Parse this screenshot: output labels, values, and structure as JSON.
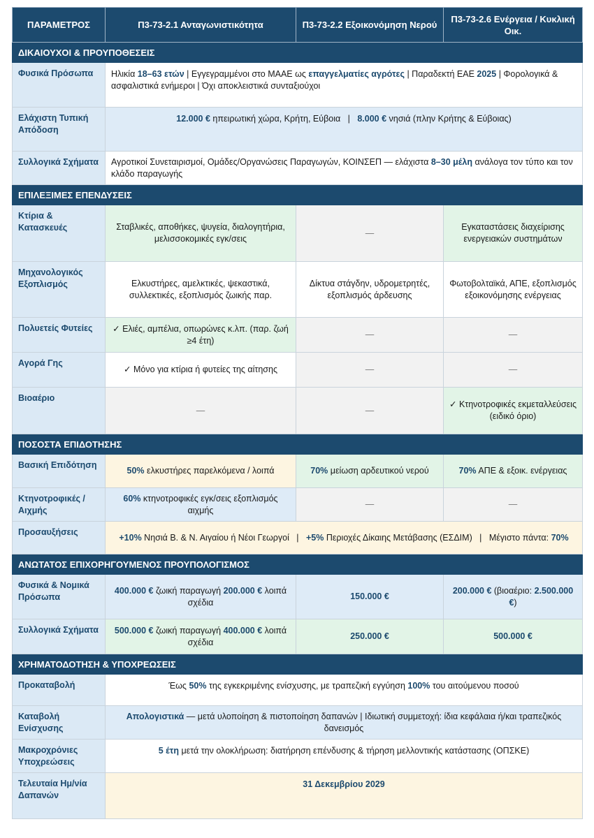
{
  "colors": {
    "header": "#1c4a6e",
    "label": "#dbe9f5",
    "white": "#ffffff",
    "green": "#e2f4e7",
    "grey": "#f2f2f2",
    "blue": "#deebf7",
    "cream": "#fdf5e1",
    "highlight": "#1c4a6e"
  },
  "header": [
    "ΠΑΡΑΜΕΤΡΟΣ",
    "Π3-73-2.1 Ανταγωνιστικότητα",
    "Π3-73-2.2 Εξοικονόμηση Νερού",
    "Π3-73-2.6 Ενέργεια / Κυκλική Οικ."
  ],
  "sections": [
    {
      "title": "ΔΙΚΑΙΟΥΧΟΙ & ΠΡΟΥΠΟΘΕΣΕΙΣ",
      "rows": [
        {
          "label": "Φυσικά Πρόσωπα",
          "cells": [
            {
              "span": 3,
              "bg": "white",
              "align": "l",
              "top": true,
              "segs": [
                {
                  "t": "Ηλικία "
                },
                {
                  "t": "18–63 ετών",
                  "hl": true
                },
                {
                  "t": " | Εγγεγραμμένοι στο ΜΑΑΕ ως "
                },
                {
                  "t": "επαγγελματίες αγρότες",
                  "hl": true
                },
                {
                  "t": " | Παραδεκτή ΕΑΕ "
                },
                {
                  "t": "2025",
                  "hl": true
                },
                {
                  "t": " | Φορολογικά & ασφαλιστικά ενήμεροι | Όχι αποκλειστικά συνταξιούχοι"
                }
              ]
            }
          ]
        },
        {
          "label": "Ελάχιστη Τυπική Απόδοση",
          "cells": [
            {
              "span": 3,
              "bg": "blue",
              "align": "c",
              "top": true,
              "segs": [
                {
                  "t": "12.000 €",
                  "hl": true
                },
                {
                  "t": " ηπειρωτική χώρα, Κρήτη, Εύβοια   |   "
                },
                {
                  "t": "8.000 €",
                  "hl": true
                },
                {
                  "t": " νησιά (πλην Κρήτης & Εύβοιας)"
                }
              ]
            }
          ]
        },
        {
          "label": "Συλλογικά Σχήματα",
          "cells": [
            {
              "span": 3,
              "bg": "white",
              "align": "l",
              "segs": [
                {
                  "t": "Αγροτικοί Συνεταιρισμοί, Ομάδες/Οργανώσεις Παραγωγών, ΚΟΙΝΣΕΠ — ελάχιστα "
                },
                {
                  "t": "8–30 μέλη",
                  "hl": true
                },
                {
                  "t": " ανάλογα τον τύπο και τον κλάδο παραγωγής"
                }
              ]
            }
          ]
        }
      ]
    },
    {
      "title": "ΕΠΙΛΕΞΙΜΕΣ ΕΠΕΝΔΥΣΕΙΣ",
      "rows": [
        {
          "label": "Κτίρια & Κατασκευές",
          "cells": [
            {
              "bg": "green",
              "align": "c",
              "segs": [
                {
                  "t": "Σταβλικές, αποθήκες, ψυγεία, διαλογητήρια, μελισσοκομικές εγκ/σεις"
                }
              ]
            },
            {
              "bg": "grey",
              "align": "c",
              "segs": [
                {
                  "t": "—"
                }
              ]
            },
            {
              "bg": "green",
              "align": "c",
              "segs": [
                {
                  "t": "Εγκαταστάσεις διαχείρισης ενεργειακών συστημάτων"
                }
              ]
            }
          ]
        },
        {
          "label": "Μηχανολογικός Εξοπλισμός",
          "cells": [
            {
              "bg": "white",
              "align": "c",
              "segs": [
                {
                  "t": "Ελκυστήρες, αμελκτικές, ψεκαστικά, συλλεκτικές, εξοπλισμός ζωικής παρ."
                }
              ]
            },
            {
              "bg": "white",
              "align": "c",
              "segs": [
                {
                  "t": "Δίκτυα στάγδην, υδρομετρητές, εξοπλισμός άρδευσης"
                }
              ]
            },
            {
              "bg": "white",
              "align": "c",
              "segs": [
                {
                  "t": "Φωτοβολταϊκά, ΑΠΕ, εξοπλισμός εξοικονόμησης ενέργειας"
                }
              ]
            }
          ]
        },
        {
          "label": "Πολυετείς Φυτείες",
          "cells": [
            {
              "bg": "green",
              "align": "c",
              "segs": [
                {
                  "t": "✓ Ελιές, αμπέλια, οπωρώνες κ.λπ. (παρ. ζωή ≥4 έτη)"
                }
              ]
            },
            {
              "bg": "grey",
              "align": "c",
              "segs": [
                {
                  "t": "—"
                }
              ]
            },
            {
              "bg": "grey",
              "align": "c",
              "segs": [
                {
                  "t": "—"
                }
              ]
            }
          ]
        },
        {
          "label": "Αγορά Γης",
          "cells": [
            {
              "bg": "white",
              "align": "c",
              "segs": [
                {
                  "t": "✓ Μόνο για κτίρια ή φυτείες της αίτησης"
                }
              ]
            },
            {
              "bg": "grey",
              "align": "c",
              "segs": [
                {
                  "t": "—"
                }
              ]
            },
            {
              "bg": "grey",
              "align": "c",
              "segs": [
                {
                  "t": "—"
                }
              ]
            }
          ]
        },
        {
          "label": "Βιοαέριο",
          "cells": [
            {
              "bg": "grey",
              "align": "c",
              "segs": [
                {
                  "t": "—"
                }
              ]
            },
            {
              "bg": "grey",
              "align": "c",
              "segs": [
                {
                  "t": "—"
                }
              ]
            },
            {
              "bg": "green",
              "align": "c",
              "segs": [
                {
                  "t": "✓ Κτηνοτροφικές εκμεταλλεύσεις (ειδικό όριο)"
                }
              ]
            }
          ]
        }
      ]
    },
    {
      "title": "ΠΟΣΟΣΤΑ ΕΠΙΔΟΤΗΣΗΣ",
      "rows": [
        {
          "label": "Βασική Επιδότηση",
          "cells": [
            {
              "bg": "cream",
              "align": "c",
              "segs": [
                {
                  "t": "50%",
                  "hl": true
                },
                {
                  "t": " ελκυστήρες παρελκόμενα / λοιπά"
                }
              ]
            },
            {
              "bg": "green",
              "align": "c",
              "segs": [
                {
                  "t": "70%",
                  "hl": true
                },
                {
                  "t": " μείωση αρδευτικού νερού"
                }
              ]
            },
            {
              "bg": "green",
              "align": "c",
              "segs": [
                {
                  "t": "70%",
                  "hl": true
                },
                {
                  "t": " ΑΠΕ & εξοικ. ενέργειας"
                }
              ]
            }
          ]
        },
        {
          "label": "Κτηνοτροφικές / Αιχμής",
          "cells": [
            {
              "bg": "blue",
              "align": "c",
              "segs": [
                {
                  "t": "60%",
                  "hl": true
                },
                {
                  "t": " κτηνοτροφικές εγκ/σεις εξοπλισμός αιχμής"
                }
              ]
            },
            {
              "bg": "grey",
              "align": "c",
              "segs": [
                {
                  "t": "—"
                }
              ]
            },
            {
              "bg": "grey",
              "align": "c",
              "segs": [
                {
                  "t": "—"
                }
              ]
            }
          ]
        },
        {
          "label": "Προσαυξήσεις",
          "cells": [
            {
              "span": 3,
              "bg": "cream",
              "align": "c",
              "segs": [
                {
                  "t": "+10%",
                  "hl": true
                },
                {
                  "t": " Νησιά Β. & Ν. Αιγαίου ή Νέοι Γεωργοί   |   "
                },
                {
                  "t": "+5%",
                  "hl": true
                },
                {
                  "t": " Περιοχές Δίκαιης Μετάβασης (ΕΣΔΙΜ)   |   Μέγιστο πάντα: "
                },
                {
                  "t": "70%",
                  "hl": true
                }
              ]
            }
          ]
        }
      ]
    },
    {
      "title": "ΑΝΩΤΑΤΟΣ ΕΠΙΧΟΡΗΓΟΥΜΕΝΟΣ ΠΡΟΥΠΟΛΟΓΙΣΜΟΣ",
      "rows": [
        {
          "label": "Φυσικά & Νομικά Πρόσωπα",
          "cells": [
            {
              "bg": "blue",
              "align": "c",
              "segs": [
                {
                  "t": "400.000 €",
                  "hl": true
                },
                {
                  "t": " ζωική παραγωγή "
                },
                {
                  "t": "200.000 €",
                  "hl": true
                },
                {
                  "t": " λοιπά σχέδια"
                }
              ]
            },
            {
              "bg": "blue",
              "align": "c",
              "segs": [
                {
                  "t": "150.000 €",
                  "hl": true
                }
              ]
            },
            {
              "bg": "blue",
              "align": "c",
              "segs": [
                {
                  "t": "200.000 €",
                  "hl": true
                },
                {
                  "t": " (βιοαέριο: "
                },
                {
                  "t": "2.500.000 €",
                  "hl": true
                },
                {
                  "t": ")"
                }
              ]
            }
          ]
        },
        {
          "label": "Συλλογικά Σχήματα",
          "cells": [
            {
              "bg": "green",
              "align": "c",
              "segs": [
                {
                  "t": "500.000 €",
                  "hl": true
                },
                {
                  "t": " ζωική παραγωγή "
                },
                {
                  "t": "400.000 €",
                  "hl": true
                },
                {
                  "t": " λοιπά σχέδια"
                }
              ]
            },
            {
              "bg": "green",
              "align": "c",
              "segs": [
                {
                  "t": "250.000 €",
                  "hl": true
                }
              ]
            },
            {
              "bg": "green",
              "align": "c",
              "segs": [
                {
                  "t": "500.000 €",
                  "hl": true
                }
              ]
            }
          ]
        }
      ]
    },
    {
      "title": "ΧΡΗΜΑΤΟΔΟΤΗΣΗ & ΥΠΟΧΡΕΩΣΕΙΣ",
      "rows": [
        {
          "label": "Προκαταβολή",
          "cells": [
            {
              "span": 3,
              "bg": "white",
              "align": "c",
              "top": true,
              "segs": [
                {
                  "t": "Έως "
                },
                {
                  "t": "50%",
                  "hl": true
                },
                {
                  "t": " της εγκεκριμένης ενίσχυσης, με τραπεζική εγγύηση "
                },
                {
                  "t": "100%",
                  "hl": true
                },
                {
                  "t": " του αιτούμενου ποσού"
                }
              ]
            }
          ]
        },
        {
          "label": "Καταβολή Ενίσχυσης",
          "cells": [
            {
              "span": 3,
              "bg": "blue",
              "align": "c",
              "segs": [
                {
                  "t": "Απολογιστικά",
                  "hl": true
                },
                {
                  "t": " — μετά υλοποίηση & πιστοποίηση δαπανών | Ιδιωτική συμμετοχή: ίδια κεφάλαια ή/και τραπεζικός δανεισμός"
                }
              ]
            }
          ]
        },
        {
          "label": "Μακροχρόνιες Υποχρεώσεις",
          "cells": [
            {
              "span": 3,
              "bg": "white",
              "align": "c",
              "top": true,
              "segs": [
                {
                  "t": "5 έτη",
                  "hl": true
                },
                {
                  "t": " μετά την ολοκλήρωση: διατήρηση επένδυσης & τήρηση μελλοντικής κατάστασης (ΟΠΣΚΕ)"
                }
              ]
            }
          ]
        },
        {
          "label": "Τελευταία Ημ/νία Δαπανών",
          "cells": [
            {
              "span": 3,
              "bg": "cream",
              "align": "c",
              "top": true,
              "segs": [
                {
                  "t": "31 Δεκεμβρίου 2029",
                  "hl": true
                }
              ]
            }
          ]
        }
      ]
    }
  ]
}
